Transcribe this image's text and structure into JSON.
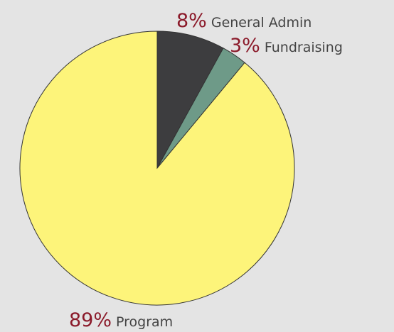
{
  "chart_data": {
    "type": "pie",
    "categories": [
      "General Admin",
      "Fundraising",
      "Program"
    ],
    "values": [
      8,
      3,
      89
    ],
    "value_labels": [
      "8%",
      "3%",
      "89%"
    ],
    "colors": [
      "#3d3d3f",
      "#6e9a88",
      "#fdf47a"
    ]
  }
}
